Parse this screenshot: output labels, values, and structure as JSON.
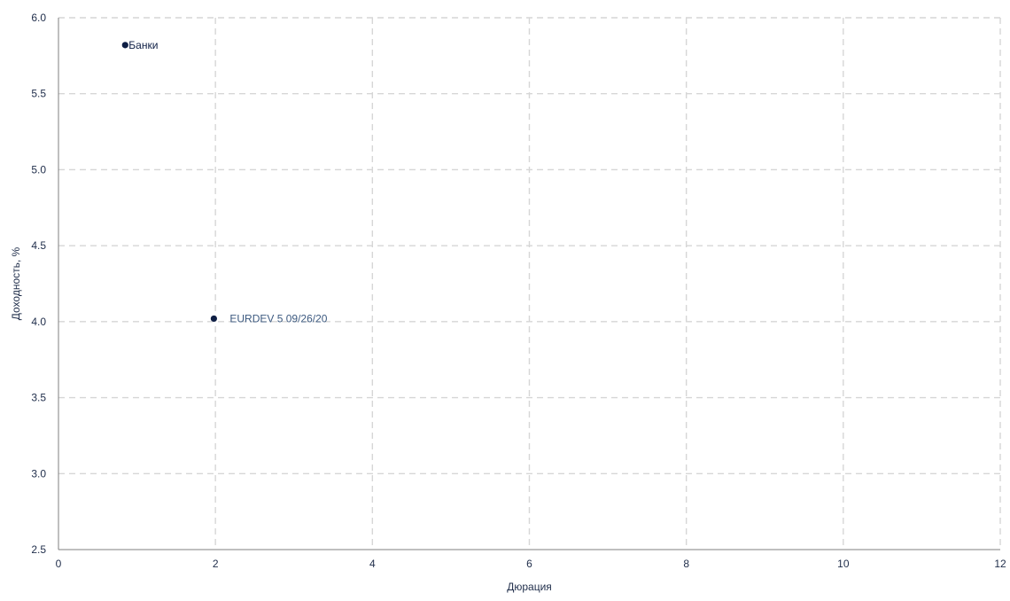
{
  "chart_data": {
    "type": "scatter",
    "title": "",
    "xlabel": "Дюрация",
    "ylabel": "Доходность, %",
    "xlim": [
      0,
      12
    ],
    "ylim": [
      2.5,
      6.0
    ],
    "x_ticks": [
      "0",
      "2",
      "4",
      "6",
      "8",
      "10",
      "12"
    ],
    "y_ticks": [
      "2.5",
      "3.0",
      "3.5",
      "4.0",
      "4.5",
      "5.0",
      "5.5",
      "6.0"
    ],
    "grid": true,
    "points": [
      {
        "label": "Банки",
        "x": 0.85,
        "y": 5.82,
        "color": "#0f1f45",
        "label_color": "#0f1f45"
      },
      {
        "label": "EURDEV 5 09/26/20",
        "x": 1.98,
        "y": 4.02,
        "color": "#0f1f45",
        "label_color": "#3d5a80"
      }
    ]
  }
}
